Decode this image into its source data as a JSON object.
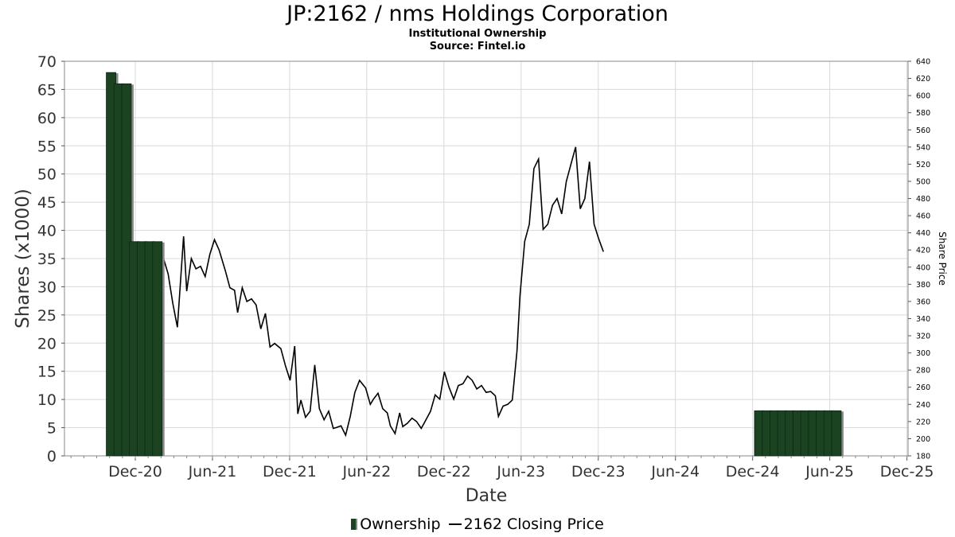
{
  "title": "JP:2162 / nms Holdings Corporation",
  "subtitle": "Institutional Ownership",
  "source": "Source: Fintel.io",
  "legend": {
    "ownership_label": "Ownership",
    "price_label": "2162 Closing Price"
  },
  "colors": {
    "bar_fill": "#1b4322",
    "bar_shadow": "#8a8a8a",
    "price_line": "#000000",
    "grid": "#d8d8d8"
  },
  "chart_data": {
    "type": "bar",
    "title": "JP:2162 / nms Holdings Corporation",
    "xlabel": "Date",
    "ylabel": "Shares (x1000)",
    "y2label": "Share Price",
    "ylim": [
      0,
      70
    ],
    "y2lim": [
      180,
      640
    ],
    "x_ticks": [
      "Dec-20",
      "Jun-21",
      "Dec-21",
      "Jun-22",
      "Dec-22",
      "Jun-23",
      "Dec-23",
      "Jun-24",
      "Dec-24",
      "Jun-25",
      "Dec-25"
    ],
    "y_ticks": [
      0,
      5,
      10,
      15,
      20,
      25,
      30,
      35,
      40,
      45,
      50,
      55,
      60,
      65,
      70
    ],
    "y2_ticks": [
      180,
      200,
      220,
      240,
      260,
      280,
      300,
      320,
      340,
      360,
      380,
      400,
      420,
      440,
      460,
      480,
      500,
      520,
      540,
      560,
      580,
      600,
      620,
      640
    ],
    "grid": true,
    "legend_position": "bottom",
    "series": [
      {
        "name": "Ownership",
        "type": "bar",
        "axis": "left",
        "points": [
          {
            "x": 2020.76,
            "y": 68
          },
          {
            "x": 2020.81,
            "y": 66
          },
          {
            "x": 2020.86,
            "y": 66
          },
          {
            "x": 2020.91,
            "y": 38
          },
          {
            "x": 2020.96,
            "y": 38
          },
          {
            "x": 2021.01,
            "y": 38
          },
          {
            "x": 2021.06,
            "y": 38
          },
          {
            "x": 2024.96,
            "y": 8
          },
          {
            "x": 2025.01,
            "y": 8
          },
          {
            "x": 2025.06,
            "y": 8
          },
          {
            "x": 2025.11,
            "y": 8
          },
          {
            "x": 2025.16,
            "y": 8
          },
          {
            "x": 2025.21,
            "y": 8
          },
          {
            "x": 2025.26,
            "y": 8
          },
          {
            "x": 2025.31,
            "y": 8
          },
          {
            "x": 2025.36,
            "y": 8
          },
          {
            "x": 2025.41,
            "y": 8
          },
          {
            "x": 2025.46,
            "y": 8
          }
        ]
      },
      {
        "name": "2162 Closing Price",
        "type": "line",
        "axis": "right",
        "points": [
          {
            "x": 2020.8,
            "y": 257
          },
          {
            "x": 2020.84,
            "y": 285
          },
          {
            "x": 2020.88,
            "y": 292
          },
          {
            "x": 2020.91,
            "y": 275
          },
          {
            "x": 2020.93,
            "y": 285
          },
          {
            "x": 2020.96,
            "y": 300
          },
          {
            "x": 2020.99,
            "y": 332
          },
          {
            "x": 2021.01,
            "y": 368
          },
          {
            "x": 2021.04,
            "y": 342
          },
          {
            "x": 2021.07,
            "y": 365
          },
          {
            "x": 2021.1,
            "y": 410
          },
          {
            "x": 2021.13,
            "y": 392
          },
          {
            "x": 2021.16,
            "y": 358
          },
          {
            "x": 2021.19,
            "y": 330
          },
          {
            "x": 2021.23,
            "y": 436
          },
          {
            "x": 2021.25,
            "y": 372
          },
          {
            "x": 2021.28,
            "y": 410
          },
          {
            "x": 2021.31,
            "y": 398
          },
          {
            "x": 2021.34,
            "y": 401
          },
          {
            "x": 2021.37,
            "y": 389
          },
          {
            "x": 2021.4,
            "y": 415
          },
          {
            "x": 2021.43,
            "y": 432
          },
          {
            "x": 2021.46,
            "y": 420
          },
          {
            "x": 2021.5,
            "y": 396
          },
          {
            "x": 2021.53,
            "y": 376
          },
          {
            "x": 2021.56,
            "y": 373
          },
          {
            "x": 2021.58,
            "y": 347
          },
          {
            "x": 2021.61,
            "y": 376
          },
          {
            "x": 2021.64,
            "y": 360
          },
          {
            "x": 2021.67,
            "y": 363
          },
          {
            "x": 2021.7,
            "y": 356
          },
          {
            "x": 2021.73,
            "y": 328
          },
          {
            "x": 2021.76,
            "y": 346
          },
          {
            "x": 2021.79,
            "y": 307
          },
          {
            "x": 2021.82,
            "y": 311
          },
          {
            "x": 2021.86,
            "y": 305
          },
          {
            "x": 2021.89,
            "y": 285
          },
          {
            "x": 2021.92,
            "y": 268
          },
          {
            "x": 2021.95,
            "y": 308
          },
          {
            "x": 2021.97,
            "y": 229
          },
          {
            "x": 2021.99,
            "y": 245
          },
          {
            "x": 2022.02,
            "y": 225
          },
          {
            "x": 2022.05,
            "y": 232
          },
          {
            "x": 2022.08,
            "y": 286
          },
          {
            "x": 2022.11,
            "y": 235
          },
          {
            "x": 2022.14,
            "y": 222
          },
          {
            "x": 2022.17,
            "y": 232
          },
          {
            "x": 2022.2,
            "y": 212
          },
          {
            "x": 2022.22,
            "y": 213
          },
          {
            "x": 2022.25,
            "y": 215
          },
          {
            "x": 2022.28,
            "y": 204
          },
          {
            "x": 2022.31,
            "y": 226
          },
          {
            "x": 2022.34,
            "y": 254
          },
          {
            "x": 2022.37,
            "y": 268
          },
          {
            "x": 2022.41,
            "y": 259
          },
          {
            "x": 2022.44,
            "y": 240
          },
          {
            "x": 2022.46,
            "y": 246
          },
          {
            "x": 2022.49,
            "y": 253
          },
          {
            "x": 2022.52,
            "y": 235
          },
          {
            "x": 2022.55,
            "y": 230
          },
          {
            "x": 2022.57,
            "y": 215
          },
          {
            "x": 2022.6,
            "y": 206
          },
          {
            "x": 2022.63,
            "y": 230
          },
          {
            "x": 2022.65,
            "y": 214
          },
          {
            "x": 2022.68,
            "y": 218
          },
          {
            "x": 2022.71,
            "y": 224
          },
          {
            "x": 2022.74,
            "y": 220
          },
          {
            "x": 2022.77,
            "y": 212
          },
          {
            "x": 2022.8,
            "y": 222
          },
          {
            "x": 2022.83,
            "y": 232
          },
          {
            "x": 2022.86,
            "y": 251
          },
          {
            "x": 2022.89,
            "y": 246
          },
          {
            "x": 2022.92,
            "y": 278
          },
          {
            "x": 2022.95,
            "y": 260
          },
          {
            "x": 2022.98,
            "y": 246
          },
          {
            "x": 2023.01,
            "y": 262
          },
          {
            "x": 2023.04,
            "y": 264
          },
          {
            "x": 2023.07,
            "y": 273
          },
          {
            "x": 2023.1,
            "y": 268
          },
          {
            "x": 2023.13,
            "y": 258
          },
          {
            "x": 2023.16,
            "y": 262
          },
          {
            "x": 2023.19,
            "y": 254
          },
          {
            "x": 2023.22,
            "y": 255
          },
          {
            "x": 2023.25,
            "y": 250
          },
          {
            "x": 2023.27,
            "y": 226
          },
          {
            "x": 2023.3,
            "y": 238
          },
          {
            "x": 2023.33,
            "y": 240
          },
          {
            "x": 2023.36,
            "y": 245
          },
          {
            "x": 2023.39,
            "y": 302
          },
          {
            "x": 2023.41,
            "y": 367
          },
          {
            "x": 2023.44,
            "y": 430
          },
          {
            "x": 2023.47,
            "y": 450
          },
          {
            "x": 2023.5,
            "y": 515
          },
          {
            "x": 2023.53,
            "y": 526
          },
          {
            "x": 2023.56,
            "y": 444
          },
          {
            "x": 2023.59,
            "y": 450
          },
          {
            "x": 2023.62,
            "y": 472
          },
          {
            "x": 2023.65,
            "y": 480
          },
          {
            "x": 2023.68,
            "y": 462
          },
          {
            "x": 2023.71,
            "y": 500
          },
          {
            "x": 2023.74,
            "y": 520
          },
          {
            "x": 2023.77,
            "y": 540
          },
          {
            "x": 2023.8,
            "y": 468
          },
          {
            "x": 2023.83,
            "y": 480
          },
          {
            "x": 2023.86,
            "y": 523
          },
          {
            "x": 2023.89,
            "y": 450
          },
          {
            "x": 2023.92,
            "y": 433
          },
          {
            "x": 2023.95,
            "y": 418
          }
        ]
      }
    ]
  }
}
